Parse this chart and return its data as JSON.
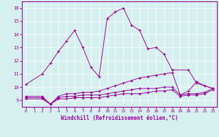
{
  "xlabel": "Windchill (Refroidissement éolien,°C)",
  "background_color": "#d6f0f0",
  "line_color": "#990099",
  "xlim": [
    -0.5,
    23.5
  ],
  "ylim": [
    8.5,
    16.5
  ],
  "yticks": [
    9,
    10,
    11,
    12,
    13,
    14,
    15,
    16
  ],
  "xticks": [
    0,
    1,
    2,
    3,
    4,
    5,
    6,
    7,
    8,
    9,
    10,
    11,
    12,
    13,
    14,
    15,
    16,
    17,
    18,
    19,
    20,
    21,
    22,
    23
  ],
  "line1_x": [
    0,
    2,
    3,
    4,
    5,
    6,
    7,
    8,
    9,
    10,
    11,
    12,
    13,
    14,
    15,
    16,
    17,
    18,
    20,
    21,
    22,
    23
  ],
  "line1_y": [
    10.2,
    11.0,
    11.8,
    12.7,
    13.5,
    14.3,
    13.0,
    11.5,
    10.8,
    15.2,
    15.7,
    16.0,
    14.7,
    14.3,
    12.9,
    13.0,
    12.5,
    11.3,
    11.3,
    10.3,
    10.1,
    9.9
  ],
  "line2_x": [
    0,
    2,
    3,
    4,
    5,
    6,
    7,
    8,
    9,
    10,
    11,
    12,
    13,
    14,
    15,
    16,
    17,
    18,
    19,
    20,
    21,
    22,
    23
  ],
  "line2_y": [
    9.3,
    9.3,
    8.7,
    9.3,
    9.5,
    9.5,
    9.6,
    9.6,
    9.7,
    9.9,
    10.1,
    10.3,
    10.5,
    10.7,
    10.8,
    10.9,
    11.0,
    11.1,
    9.4,
    9.7,
    10.4,
    10.1,
    9.9
  ],
  "line3_x": [
    0,
    2,
    3,
    4,
    5,
    6,
    7,
    8,
    9,
    10,
    11,
    12,
    13,
    14,
    15,
    16,
    17,
    18,
    19,
    20,
    21,
    22,
    23
  ],
  "line3_y": [
    9.2,
    9.2,
    8.7,
    9.2,
    9.3,
    9.3,
    9.4,
    9.4,
    9.4,
    9.5,
    9.6,
    9.7,
    9.8,
    9.9,
    9.9,
    9.9,
    10.0,
    10.0,
    9.4,
    9.5,
    9.5,
    9.6,
    9.9
  ],
  "line4_x": [
    0,
    2,
    3,
    4,
    5,
    6,
    7,
    8,
    9,
    10,
    11,
    12,
    13,
    14,
    15,
    16,
    17,
    18,
    19,
    20,
    21,
    22,
    23
  ],
  "line4_y": [
    9.1,
    9.1,
    8.7,
    9.1,
    9.1,
    9.2,
    9.2,
    9.2,
    9.2,
    9.3,
    9.4,
    9.5,
    9.5,
    9.5,
    9.6,
    9.7,
    9.7,
    9.8,
    9.3,
    9.4,
    9.4,
    9.5,
    9.8
  ]
}
